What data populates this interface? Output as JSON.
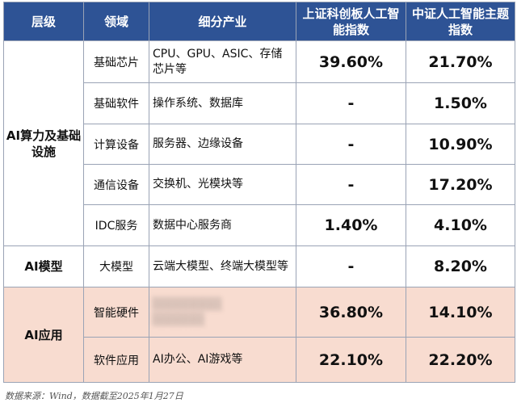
{
  "header": {
    "layer": "层级",
    "domain": "领域",
    "sub": "细分产业",
    "idx1": "上证科创板人工智能指数",
    "idx2": "中证人工智能主题指数"
  },
  "groups": {
    "infra": "AI算力及基础设施",
    "model": "AI模型",
    "app": "AI应用"
  },
  "rows": [
    {
      "domain": "基础芯片",
      "sub": "CPU、GPU、ASIC、存储芯片等",
      "v1": "39.60%",
      "v2": "21.70%"
    },
    {
      "domain": "基础软件",
      "sub": "操作系统、数据库",
      "v1": "-",
      "v2": "1.50%"
    },
    {
      "domain": "计算设备",
      "sub": "服务器、边缘设备",
      "v1": "-",
      "v2": "10.90%"
    },
    {
      "domain": "通信设备",
      "sub": "交换机、光模块等",
      "v1": "-",
      "v2": "17.20%"
    },
    {
      "domain": "IDC服务",
      "sub": "数据中心服务商",
      "v1": "1.40%",
      "v2": "4.10%"
    },
    {
      "domain": "大模型",
      "sub": "云端大模型、终端大模型等",
      "v1": "-",
      "v2": "8.20%"
    },
    {
      "domain": "智能硬件",
      "sub": "",
      "v1": "36.80%",
      "v2": "14.10%"
    },
    {
      "domain": "软件应用",
      "sub": "AI办公、AI游戏等",
      "v1": "22.10%",
      "v2": "22.20%"
    }
  ],
  "footer": "数据来源：Wind，数据截至2025年1月27日"
}
